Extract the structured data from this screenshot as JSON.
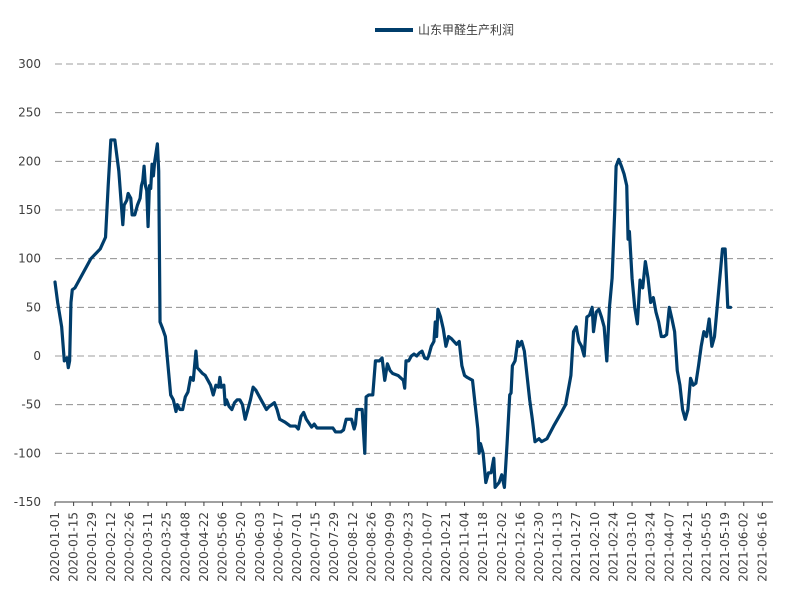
{
  "chart_data": {
    "type": "line",
    "title": "",
    "xlabel": "",
    "ylabel": "",
    "ylim": [
      -150,
      300
    ],
    "yticks": [
      -150,
      -100,
      -50,
      0,
      50,
      100,
      150,
      200,
      250,
      300
    ],
    "grid": "horizontal dashed",
    "legend_position": "top-center",
    "x_tick_labels": [
      "2020-01-01",
      "2020-01-15",
      "2020-01-29",
      "2020-02-12",
      "2020-02-26",
      "2020-03-11",
      "2020-03-25",
      "2020-04-08",
      "2020-04-22",
      "2020-05-06",
      "2020-05-20",
      "2020-06-03",
      "2020-06-17",
      "2020-07-01",
      "2020-07-15",
      "2020-07-29",
      "2020-08-12",
      "2020-08-26",
      "2020-09-09",
      "2020-09-23",
      "2020-10-07",
      "2020-10-21",
      "2020-11-04",
      "2020-11-18",
      "2020-12-02",
      "2020-12-16",
      "2020-12-30",
      "2021-01-13",
      "2021-01-27",
      "2021-02-10",
      "2021-02-24",
      "2021-03-10",
      "2021-03-24",
      "2021-04-07",
      "2021-04-21",
      "2021-05-05",
      "2021-05-19",
      "2021-06-02",
      "2021-06-16"
    ],
    "series": [
      {
        "name": "山东甲醛生产利润",
        "color": "#003D6B",
        "points": [
          [
            "2020-01-01",
            76
          ],
          [
            "2020-01-03",
            55
          ],
          [
            "2020-01-06",
            30
          ],
          [
            "2020-01-08",
            -5
          ],
          [
            "2020-01-10",
            -2
          ],
          [
            "2020-01-11",
            -12
          ],
          [
            "2020-01-12",
            -5
          ],
          [
            "2020-01-13",
            55
          ],
          [
            "2020-01-14",
            68
          ],
          [
            "2020-01-16",
            70
          ],
          [
            "2020-01-22",
            85
          ],
          [
            "2020-01-28",
            100
          ],
          [
            "2020-02-04",
            110
          ],
          [
            "2020-02-08",
            122
          ],
          [
            "2020-02-10",
            175
          ],
          [
            "2020-02-12",
            222
          ],
          [
            "2020-02-15",
            222
          ],
          [
            "2020-02-18",
            190
          ],
          [
            "2020-02-21",
            135
          ],
          [
            "2020-02-22",
            155
          ],
          [
            "2020-02-24",
            160
          ],
          [
            "2020-02-25",
            167
          ],
          [
            "2020-02-27",
            162
          ],
          [
            "2020-02-28",
            145
          ],
          [
            "2020-03-01",
            145
          ],
          [
            "2020-03-03",
            155
          ],
          [
            "2020-03-05",
            162
          ],
          [
            "2020-03-06",
            175
          ],
          [
            "2020-03-07",
            180
          ],
          [
            "2020-03-08",
            195
          ],
          [
            "2020-03-09",
            175
          ],
          [
            "2020-03-10",
            170
          ],
          [
            "2020-03-11",
            133
          ],
          [
            "2020-03-12",
            175
          ],
          [
            "2020-03-13",
            172
          ],
          [
            "2020-03-14",
            197
          ],
          [
            "2020-03-15",
            185
          ],
          [
            "2020-03-16",
            200
          ],
          [
            "2020-03-18",
            218
          ],
          [
            "2020-03-19",
            190
          ],
          [
            "2020-03-20",
            35
          ],
          [
            "2020-03-22",
            28
          ],
          [
            "2020-03-24",
            20
          ],
          [
            "2020-03-26",
            -10
          ],
          [
            "2020-03-28",
            -40
          ],
          [
            "2020-03-30",
            -45
          ],
          [
            "2020-04-01",
            -57
          ],
          [
            "2020-04-02",
            -50
          ],
          [
            "2020-04-04",
            -55
          ],
          [
            "2020-04-06",
            -55
          ],
          [
            "2020-04-08",
            -42
          ],
          [
            "2020-04-10",
            -37
          ],
          [
            "2020-04-12",
            -22
          ],
          [
            "2020-04-14",
            -25
          ],
          [
            "2020-04-15",
            -10
          ],
          [
            "2020-04-16",
            5
          ],
          [
            "2020-04-17",
            -12
          ],
          [
            "2020-04-19",
            -15
          ],
          [
            "2020-04-21",
            -18
          ],
          [
            "2020-04-23",
            -20
          ],
          [
            "2020-04-25",
            -25
          ],
          [
            "2020-04-27",
            -30
          ],
          [
            "2020-04-29",
            -40
          ],
          [
            "2020-05-01",
            -30
          ],
          [
            "2020-05-03",
            -32
          ],
          [
            "2020-05-04",
            -22
          ],
          [
            "2020-05-05",
            -32
          ],
          [
            "2020-05-07",
            -30
          ],
          [
            "2020-05-08",
            -50
          ],
          [
            "2020-05-09",
            -45
          ],
          [
            "2020-05-11",
            -52
          ],
          [
            "2020-05-13",
            -55
          ],
          [
            "2020-05-15",
            -48
          ],
          [
            "2020-05-17",
            -45
          ],
          [
            "2020-05-19",
            -45
          ],
          [
            "2020-05-21",
            -50
          ],
          [
            "2020-05-23",
            -65
          ],
          [
            "2020-05-25",
            -55
          ],
          [
            "2020-05-27",
            -45
          ],
          [
            "2020-05-29",
            -32
          ],
          [
            "2020-05-31",
            -35
          ],
          [
            "2020-06-02",
            -40
          ],
          [
            "2020-06-04",
            -45
          ],
          [
            "2020-06-06",
            -50
          ],
          [
            "2020-06-08",
            -55
          ],
          [
            "2020-06-10",
            -52
          ],
          [
            "2020-06-12",
            -50
          ],
          [
            "2020-06-14",
            -48
          ],
          [
            "2020-06-16",
            -55
          ],
          [
            "2020-06-18",
            -65
          ],
          [
            "2020-06-22",
            -68
          ],
          [
            "2020-06-26",
            -72
          ],
          [
            "2020-06-30",
            -72
          ],
          [
            "2020-07-02",
            -75
          ],
          [
            "2020-07-04",
            -62
          ],
          [
            "2020-07-06",
            -58
          ],
          [
            "2020-07-08",
            -65
          ],
          [
            "2020-07-12",
            -73
          ],
          [
            "2020-07-14",
            -70
          ],
          [
            "2020-07-16",
            -74
          ],
          [
            "2020-07-22",
            -74
          ],
          [
            "2020-07-28",
            -74
          ],
          [
            "2020-07-30",
            -78
          ],
          [
            "2020-08-03",
            -78
          ],
          [
            "2020-08-05",
            -76
          ],
          [
            "2020-08-07",
            -65
          ],
          [
            "2020-08-11",
            -65
          ],
          [
            "2020-08-13",
            -75
          ],
          [
            "2020-08-14",
            -70
          ],
          [
            "2020-08-15",
            -55
          ],
          [
            "2020-08-19",
            -55
          ],
          [
            "2020-08-21",
            -100
          ],
          [
            "2020-08-22",
            -42
          ],
          [
            "2020-08-24",
            -40
          ],
          [
            "2020-08-27",
            -40
          ],
          [
            "2020-08-29",
            -5
          ],
          [
            "2020-09-01",
            -5
          ],
          [
            "2020-09-03",
            -2
          ],
          [
            "2020-09-05",
            -25
          ],
          [
            "2020-09-07",
            -8
          ],
          [
            "2020-09-09",
            -15
          ],
          [
            "2020-09-11",
            -18
          ],
          [
            "2020-09-15",
            -20
          ],
          [
            "2020-09-19",
            -25
          ],
          [
            "2020-09-20",
            -33
          ],
          [
            "2020-09-21",
            -5
          ],
          [
            "2020-09-23",
            -5
          ],
          [
            "2020-09-25",
            0
          ],
          [
            "2020-09-27",
            2
          ],
          [
            "2020-09-29",
            0
          ],
          [
            "2020-10-01",
            3
          ],
          [
            "2020-10-03",
            5
          ],
          [
            "2020-10-05",
            -2
          ],
          [
            "2020-10-07",
            -3
          ],
          [
            "2020-10-08",
            0
          ],
          [
            "2020-10-10",
            10
          ],
          [
            "2020-10-12",
            15
          ],
          [
            "2020-10-13",
            35
          ],
          [
            "2020-10-14",
            20
          ],
          [
            "2020-10-15",
            48
          ],
          [
            "2020-10-17",
            40
          ],
          [
            "2020-10-19",
            28
          ],
          [
            "2020-10-21",
            10
          ],
          [
            "2020-10-23",
            20
          ],
          [
            "2020-10-25",
            18
          ],
          [
            "2020-10-27",
            15
          ],
          [
            "2020-10-29",
            12
          ],
          [
            "2020-10-31",
            15
          ],
          [
            "2020-11-02",
            -10
          ],
          [
            "2020-11-04",
            -20
          ],
          [
            "2020-11-06",
            -22
          ],
          [
            "2020-11-10",
            -25
          ],
          [
            "2020-11-12",
            -50
          ],
          [
            "2020-11-14",
            -75
          ],
          [
            "2020-11-15",
            -100
          ],
          [
            "2020-11-16",
            -90
          ],
          [
            "2020-11-18",
            -100
          ],
          [
            "2020-11-20",
            -130
          ],
          [
            "2020-11-22",
            -120
          ],
          [
            "2020-11-24",
            -120
          ],
          [
            "2020-11-26",
            -105
          ],
          [
            "2020-11-27",
            -135
          ],
          [
            "2020-11-30",
            -130
          ],
          [
            "2020-12-02",
            -122
          ],
          [
            "2020-12-04",
            -135
          ],
          [
            "2020-12-06",
            -90
          ],
          [
            "2020-12-08",
            -40
          ],
          [
            "2020-12-09",
            -38
          ],
          [
            "2020-12-10",
            -10
          ],
          [
            "2020-12-12",
            -5
          ],
          [
            "2020-12-14",
            15
          ],
          [
            "2020-12-15",
            10
          ],
          [
            "2020-12-17",
            15
          ],
          [
            "2020-12-19",
            5
          ],
          [
            "2020-12-21",
            -20
          ],
          [
            "2020-12-23",
            -45
          ],
          [
            "2020-12-25",
            -65
          ],
          [
            "2020-12-27",
            -88
          ],
          [
            "2020-12-30",
            -85
          ],
          [
            "2021-01-01",
            -88
          ],
          [
            "2021-01-05",
            -85
          ],
          [
            "2021-01-10",
            -72
          ],
          [
            "2021-01-15",
            -60
          ],
          [
            "2021-01-19",
            -50
          ],
          [
            "2021-01-23",
            -20
          ],
          [
            "2021-01-25",
            25
          ],
          [
            "2021-01-27",
            30
          ],
          [
            "2021-01-29",
            15
          ],
          [
            "2021-01-31",
            10
          ],
          [
            "2021-02-02",
            0
          ],
          [
            "2021-02-04",
            40
          ],
          [
            "2021-02-06",
            42
          ],
          [
            "2021-02-08",
            50
          ],
          [
            "2021-02-09",
            25
          ],
          [
            "2021-02-11",
            45
          ],
          [
            "2021-02-13",
            48
          ],
          [
            "2021-02-15",
            40
          ],
          [
            "2021-02-17",
            30
          ],
          [
            "2021-02-19",
            -5
          ],
          [
            "2021-02-21",
            50
          ],
          [
            "2021-02-23",
            80
          ],
          [
            "2021-02-25",
            150
          ],
          [
            "2021-02-26",
            195
          ],
          [
            "2021-02-28",
            202
          ],
          [
            "2021-03-02",
            195
          ],
          [
            "2021-03-04",
            187
          ],
          [
            "2021-03-06",
            175
          ],
          [
            "2021-03-07",
            120
          ],
          [
            "2021-03-08",
            128
          ],
          [
            "2021-03-10",
            80
          ],
          [
            "2021-03-12",
            50
          ],
          [
            "2021-03-14",
            33
          ],
          [
            "2021-03-16",
            78
          ],
          [
            "2021-03-18",
            70
          ],
          [
            "2021-03-20",
            97
          ],
          [
            "2021-03-22",
            80
          ],
          [
            "2021-03-24",
            55
          ],
          [
            "2021-03-26",
            60
          ],
          [
            "2021-03-28",
            45
          ],
          [
            "2021-03-30",
            35
          ],
          [
            "2021-04-01",
            20
          ],
          [
            "2021-04-03",
            20
          ],
          [
            "2021-04-05",
            22
          ],
          [
            "2021-04-07",
            50
          ],
          [
            "2021-04-09",
            38
          ],
          [
            "2021-04-11",
            25
          ],
          [
            "2021-04-13",
            -15
          ],
          [
            "2021-04-15",
            -30
          ],
          [
            "2021-04-17",
            -55
          ],
          [
            "2021-04-19",
            -65
          ],
          [
            "2021-04-21",
            -55
          ],
          [
            "2021-04-23",
            -23
          ],
          [
            "2021-04-25",
            -30
          ],
          [
            "2021-04-27",
            -28
          ],
          [
            "2021-04-29",
            -10
          ],
          [
            "2021-05-01",
            10
          ],
          [
            "2021-05-03",
            25
          ],
          [
            "2021-05-05",
            20
          ],
          [
            "2021-05-07",
            38
          ],
          [
            "2021-05-09",
            10
          ],
          [
            "2021-05-11",
            20
          ],
          [
            "2021-05-13",
            50
          ],
          [
            "2021-05-15",
            80
          ],
          [
            "2021-05-17",
            110
          ],
          [
            "2021-05-19",
            110
          ],
          [
            "2021-05-21",
            50
          ],
          [
            "2021-05-23",
            50
          ]
        ]
      }
    ]
  }
}
